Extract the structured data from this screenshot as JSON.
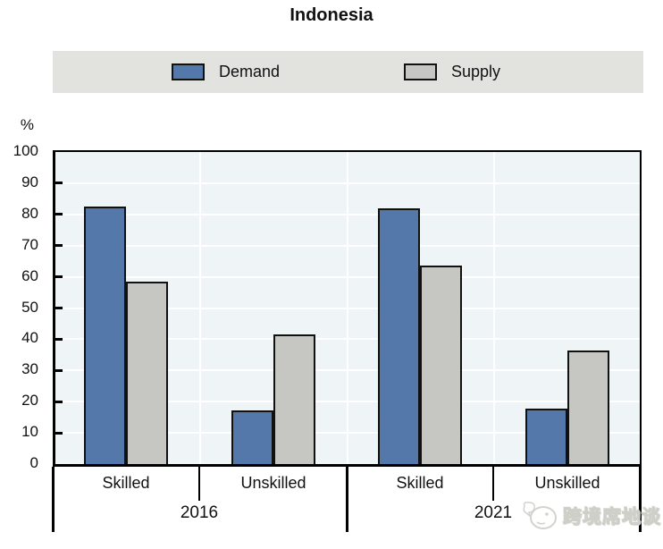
{
  "title": "Indonesia",
  "legend": {
    "items": [
      {
        "label": "Demand",
        "color": "#5578aa"
      },
      {
        "label": "Supply",
        "color": "#c6c6c3"
      }
    ],
    "background": "#e2e2df"
  },
  "y_axis": {
    "unit": "%",
    "ticks": [
      0,
      10,
      20,
      30,
      40,
      50,
      60,
      70,
      80,
      90,
      100
    ]
  },
  "chart_data": {
    "type": "bar",
    "title": "Indonesia",
    "ylabel": "%",
    "ylim": [
      0,
      100
    ],
    "grid": true,
    "legend_position": "top",
    "plot_background": "#eff4f6",
    "categories": [
      "2016 Skilled",
      "2016 Unskilled",
      "2021 Skilled",
      "2021 Unskilled"
    ],
    "groups": [
      {
        "year": "2016",
        "categories": [
          "Skilled",
          "Unskilled"
        ]
      },
      {
        "year": "2021",
        "categories": [
          "Skilled",
          "Unskilled"
        ]
      }
    ],
    "series": [
      {
        "name": "Demand",
        "color": "#5578aa",
        "values": [
          82.5,
          17.3,
          82.0,
          17.8
        ]
      },
      {
        "name": "Supply",
        "color": "#c6c6c3",
        "values": [
          58.5,
          41.5,
          63.5,
          36.5
        ]
      }
    ]
  },
  "watermark": {
    "text": "跨境席地谈"
  }
}
